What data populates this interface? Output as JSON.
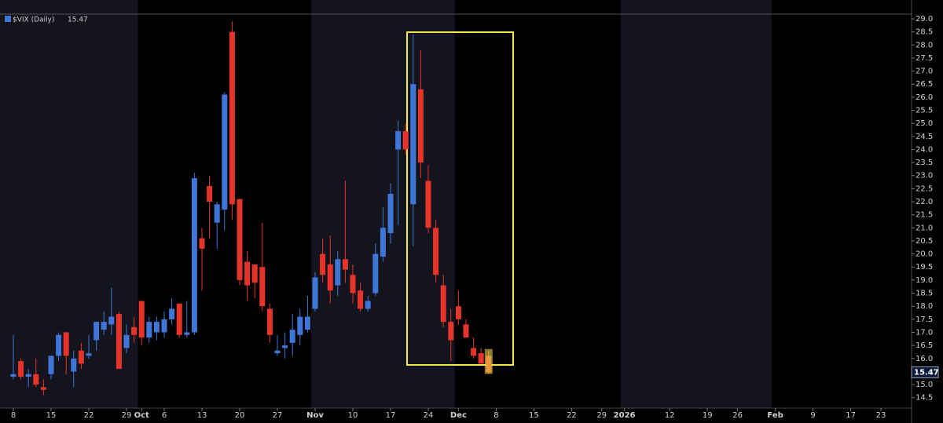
{
  "chart_data": {
    "type": "candlestick",
    "title": "$VIX (Daily)",
    "categories": [
      "8",
      null,
      null,
      null,
      null,
      "15",
      null,
      null,
      null,
      null,
      "22",
      null,
      null,
      null,
      null,
      "29",
      null,
      "Oct",
      null,
      null,
      "6",
      null,
      null,
      null,
      null,
      "13",
      null,
      null,
      null,
      null,
      "20",
      null,
      null,
      null,
      null,
      "27",
      null,
      null,
      null,
      null,
      "Nov",
      null,
      null,
      null,
      null,
      "10",
      null,
      null,
      null,
      null,
      "17",
      null,
      null,
      null,
      null,
      "24",
      null,
      null,
      null,
      "Dec",
      null,
      null,
      null,
      null,
      "8",
      null,
      null,
      null,
      null,
      "15",
      null,
      null,
      null,
      null,
      "22",
      null,
      null,
      null,
      "29",
      null,
      null,
      "2026",
      null,
      null,
      null,
      null,
      null,
      "12",
      null,
      null,
      null,
      null,
      "19",
      null,
      null,
      null,
      "26",
      null,
      null,
      null,
      null,
      "Feb",
      null,
      null,
      null,
      null,
      "9",
      null,
      null,
      null,
      null,
      "17",
      null,
      null,
      null,
      "23",
      null,
      null
    ],
    "series": [
      {
        "name": "$VIX",
        "up_color": "#3f76d8",
        "down_color": "#e5352b",
        "open": [
          15.3,
          15.9,
          15.3,
          15.4,
          14.9,
          15.4,
          16.1,
          17.0,
          15.5,
          16.3,
          16.1,
          16.7,
          17.1,
          17.3,
          17.7,
          16.4,
          17.2,
          18.2,
          16.8,
          17.0,
          17.0,
          17.5,
          18.1,
          16.9,
          17.0,
          20.6,
          22.6,
          21.2,
          21.7,
          28.5,
          22.1,
          19.7,
          19.6,
          19.5,
          17.9,
          16.2,
          16.4,
          16.6,
          16.9,
          17.1,
          17.9,
          20.0,
          19.6,
          18.8,
          19.8,
          19.2,
          18.6,
          17.9,
          18.5,
          19.9,
          20.8,
          24.0,
          24.7,
          21.9,
          26.3,
          22.8,
          21.0,
          18.8,
          17.4,
          18.0,
          17.3,
          16.4,
          16.2,
          16.1,
          null,
          null,
          null,
          null,
          null,
          null,
          null,
          null,
          null,
          null,
          null,
          null,
          null,
          null,
          null,
          null,
          null,
          null,
          null,
          null,
          null,
          null,
          null,
          null,
          null,
          null,
          null,
          null,
          null,
          null,
          null,
          null,
          null,
          null,
          null,
          null,
          null,
          null,
          null,
          null,
          null,
          null,
          null,
          null,
          null,
          null,
          null,
          null,
          null,
          null
        ],
        "high": [
          16.9,
          16.0,
          15.6,
          16.0,
          15.2,
          16.1,
          17.0,
          17.0,
          16.3,
          16.6,
          16.9,
          17.4,
          17.8,
          18.7,
          17.8,
          17.3,
          17.6,
          18.2,
          17.6,
          17.6,
          17.8,
          18.3,
          18.1,
          18.2,
          23.1,
          21.0,
          23.0,
          22.0,
          26.2,
          28.9,
          22.1,
          20.1,
          19.6,
          21.2,
          18.1,
          16.9,
          17.0,
          17.7,
          17.9,
          18.4,
          19.3,
          20.6,
          20.7,
          20.1,
          22.8,
          19.6,
          18.9,
          18.4,
          20.4,
          21.8,
          22.7,
          25.1,
          25.0,
          28.4,
          27.8,
          23.4,
          21.3,
          19.2,
          17.9,
          18.6,
          17.5,
          16.8,
          16.4,
          16.3,
          null,
          null,
          null,
          null,
          null,
          null,
          null,
          null,
          null,
          null,
          null,
          null,
          null,
          null,
          null,
          null,
          null,
          null,
          null,
          null,
          null,
          null,
          null,
          null,
          null,
          null,
          null,
          null,
          null,
          null,
          null,
          null,
          null,
          null,
          null,
          null,
          null,
          null,
          null,
          null,
          null,
          null,
          null,
          null,
          null,
          null,
          null,
          null,
          null,
          null
        ],
        "low": [
          15.2,
          15.2,
          14.9,
          14.9,
          14.6,
          15.2,
          15.9,
          15.4,
          14.9,
          15.6,
          16.0,
          16.3,
          16.9,
          16.9,
          15.6,
          16.2,
          16.6,
          16.5,
          16.6,
          16.7,
          16.8,
          17.3,
          16.8,
          16.8,
          16.9,
          18.6,
          20.6,
          20.2,
          20.9,
          21.3,
          18.8,
          18.2,
          18.3,
          17.8,
          16.6,
          16.1,
          16.0,
          16.1,
          16.5,
          17.0,
          17.8,
          18.9,
          18.1,
          18.4,
          18.9,
          18.1,
          17.8,
          17.8,
          18.4,
          19.7,
          20.4,
          21.1,
          23.8,
          20.3,
          22.9,
          20.8,
          18.9,
          17.2,
          15.9,
          17.3,
          16.8,
          16.0,
          15.8,
          15.4,
          null,
          null,
          null,
          null,
          null,
          null,
          null,
          null,
          null,
          null,
          null,
          null,
          null,
          null,
          null,
          null,
          null,
          null,
          null,
          null,
          null,
          null,
          null,
          null,
          null,
          null,
          null,
          null,
          null,
          null,
          null,
          null,
          null,
          null,
          null,
          null,
          null,
          null,
          null,
          null,
          null,
          null,
          null,
          null,
          null,
          null,
          null,
          null,
          null,
          null
        ],
        "close": [
          15.4,
          15.3,
          15.4,
          15.0,
          14.8,
          16.1,
          16.9,
          16.1,
          16.0,
          15.8,
          16.2,
          17.4,
          17.4,
          17.6,
          15.6,
          16.9,
          16.9,
          16.8,
          17.4,
          17.4,
          17.5,
          17.9,
          16.9,
          17.0,
          22.9,
          20.2,
          22.0,
          21.9,
          26.1,
          21.9,
          19.0,
          18.8,
          18.9,
          18.0,
          16.9,
          16.3,
          16.5,
          17.1,
          17.6,
          17.6,
          19.1,
          19.2,
          18.6,
          19.8,
          19.4,
          18.5,
          17.9,
          18.2,
          20.0,
          21.0,
          22.3,
          24.7,
          24.0,
          26.5,
          23.5,
          21.0,
          19.2,
          17.4,
          16.7,
          17.5,
          16.8,
          16.1,
          15.8,
          15.47,
          null,
          null,
          null,
          null,
          null,
          null,
          null,
          null,
          null,
          null,
          null,
          null,
          null,
          null,
          null,
          null,
          null,
          null,
          null,
          null,
          null,
          null,
          null,
          null,
          null,
          null,
          null,
          null,
          null,
          null,
          null,
          null,
          null,
          null,
          null,
          null,
          null,
          null,
          null,
          null,
          null,
          null,
          null,
          null,
          null,
          null,
          null,
          null,
          null,
          null
        ]
      }
    ],
    "ylim": [
      14.1,
      29.18
    ],
    "yticks": [
      14.5,
      {
        "value": 15,
        "label": "15.0"
      },
      15.5,
      {
        "value": 16,
        "label": "16.0"
      },
      16.5,
      {
        "value": 17,
        "label": "17.0"
      },
      17.5,
      {
        "value": 18,
        "label": "18.0"
      },
      18.5,
      {
        "value": 19,
        "label": "19.0"
      },
      19.5,
      {
        "value": 20,
        "label": "20.0"
      },
      20.5,
      {
        "value": 21,
        "label": "21.0"
      },
      21.5,
      {
        "value": 22,
        "label": "22.0"
      },
      22.5,
      {
        "value": 23,
        "label": "23.0"
      },
      23.5,
      {
        "value": 24,
        "label": "24.0"
      },
      24.5,
      {
        "value": 25,
        "label": "25.0"
      },
      25.5,
      {
        "value": 26,
        "label": "26.0"
      },
      26.5,
      {
        "value": 27,
        "label": "27.0"
      },
      27.5,
      {
        "value": 28,
        "label": "28.0"
      },
      28.5,
      {
        "value": 29,
        "label": "29.0"
      }
    ],
    "grid": false
  }
}
